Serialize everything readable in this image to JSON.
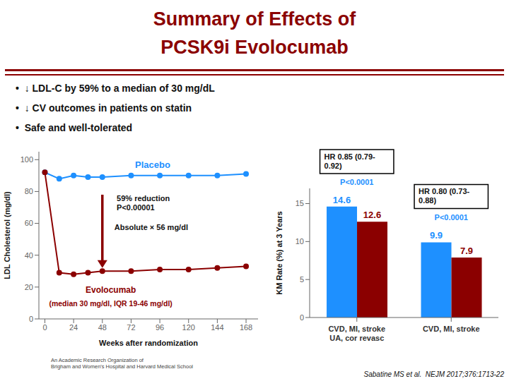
{
  "title": "Summary of Effects of\nPCSK9i Evolocumab",
  "color": "#8B0000",
  "annotations": [
    "•  ↓ LDL-C by 59% to a median of 30 mg/dL",
    "•  ↓ CV outcomes in patients on statin",
    "•  Safe and well-tolerated"
  ],
  "source": "Sabatine MS et al.  NEJM 2017;376:1713-22",
  "footnote": "An Academic Research Organization of\nBrigham and Women's Hospital and Harvard Medical School",
  "chart_data": [
    {
      "type": "line",
      "x": [
        0,
        12,
        24,
        36,
        48,
        72,
        96,
        120,
        144,
        168
      ],
      "series": [
        {
          "name": "Placebo",
          "color": "#1E90FF",
          "values": [
            92,
            88,
            90,
            89,
            89,
            90,
            90,
            90,
            90,
            91
          ]
        },
        {
          "name": "Evolocumab",
          "color": "#8B0000",
          "values": [
            92,
            29,
            28,
            29,
            30,
            30,
            31,
            31,
            32,
            33
          ]
        }
      ],
      "x_label": "Weeks after randomization",
      "y_label": "LDL Cholesterol (mg/dl)",
      "xlim": [
        -5,
        178
      ],
      "xticks": [
        0,
        24,
        48,
        72,
        96,
        120,
        144,
        168
      ],
      "ylim": [
        0,
        105
      ],
      "yticks": [
        0,
        20,
        40,
        60,
        80,
        100
      ],
      "marker": "circle",
      "grid": false,
      "annotations": [
        "59% reduction\nP<0.00001",
        "Absolute × 56 mg/dl",
        "(median 30 mg/dl, IQR 19-46 mg/dl)"
      ]
    },
    {
      "type": "bar",
      "categories": [
        "CVD, MI, stroke\nUA, cor revasc",
        "CVD, MI, stroke"
      ],
      "series": [
        {
          "color": "#1E90FF",
          "values": [
            14.6,
            9.9
          ]
        },
        {
          "color": "#8B0000",
          "values": [
            12.6,
            7.9
          ]
        }
      ],
      "y_label": "KM Rate (%) at 3 Years",
      "ylim": [
        0,
        17
      ],
      "yticks": [
        0,
        5,
        10,
        15
      ],
      "data_labels": true,
      "grid": false,
      "annotations": [
        "HR 0.85 (0.79-\n0.92)",
        "P<0.0001",
        "HR 0.80 (0.73-\n0.88)",
        "P<0.0001"
      ]
    }
  ]
}
